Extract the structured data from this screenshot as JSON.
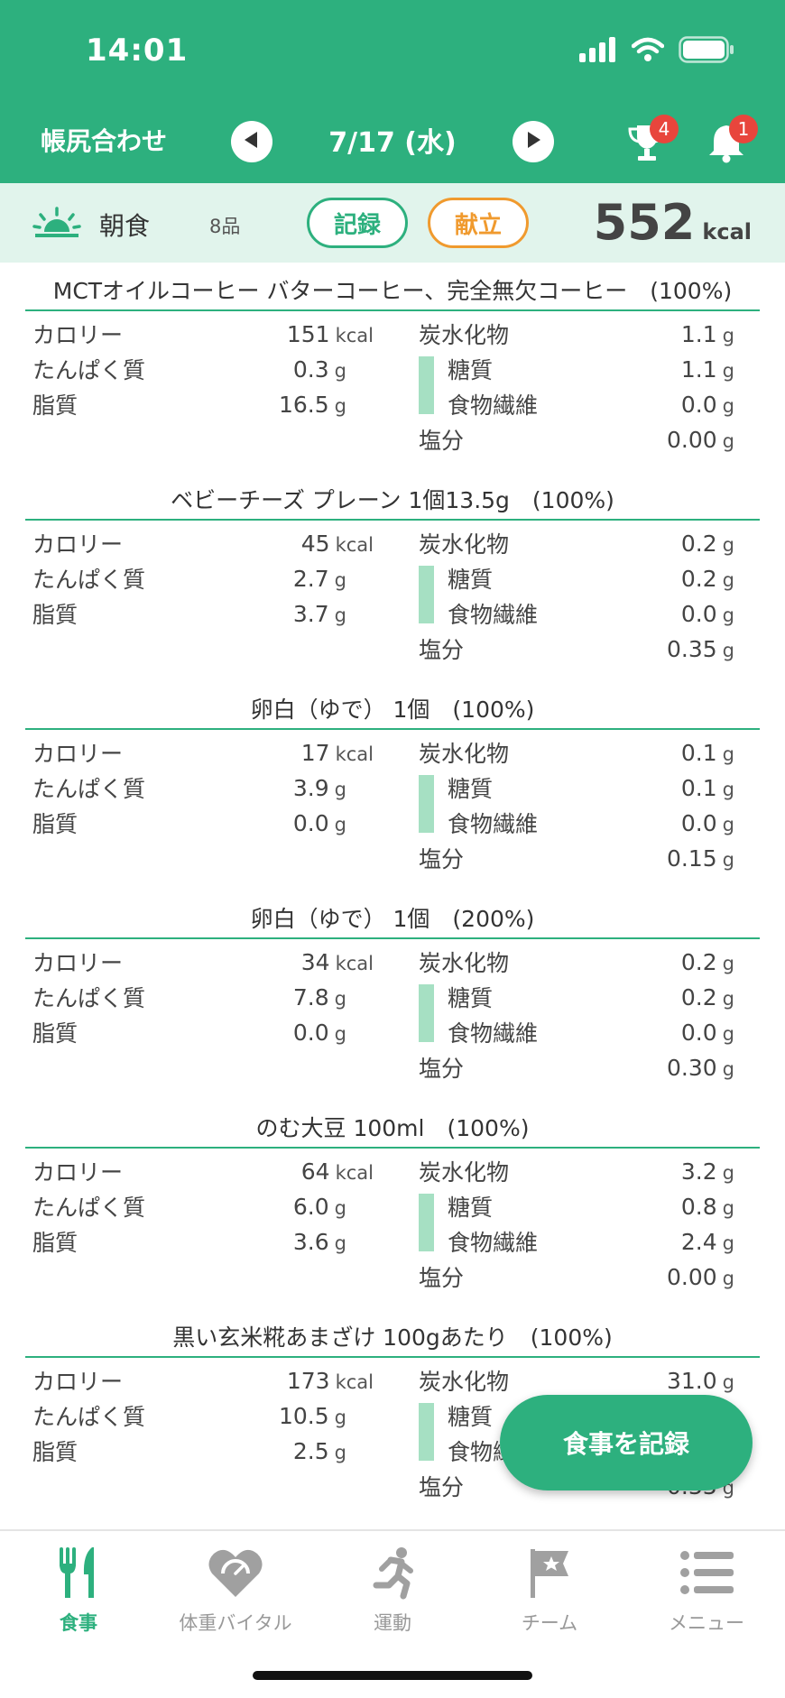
{
  "status": {
    "time": "14:01"
  },
  "header": {
    "title": "帳尻合わせ",
    "date": "7/17 (水)",
    "trophy_badge": "4",
    "bell_badge": "1"
  },
  "meal": {
    "name": "朝食",
    "count": "8品",
    "record_label": "記録",
    "menu_label": "献立",
    "kcal": "552",
    "kcal_unit": "kcal"
  },
  "labels": {
    "calorie": "カロリー",
    "protein": "たんぱく質",
    "fat": "脂質",
    "carbs": "炭水化物",
    "sugar": "糖質",
    "fiber": "食物繊維",
    "salt": "塩分",
    "kcal": "kcal",
    "g": "g"
  },
  "foods": [
    {
      "title": "MCTオイルコーヒー バターコーヒー、完全無欠コーヒー　(100%)",
      "calorie": "151",
      "protein": "0.3",
      "fat": "16.5",
      "carbs": "1.1",
      "sugar": "1.1",
      "fiber": "0.0",
      "salt": "0.00"
    },
    {
      "title": "ベビーチーズ プレーン 1個13.5g　(100%)",
      "calorie": "45",
      "protein": "2.7",
      "fat": "3.7",
      "carbs": "0.2",
      "sugar": "0.2",
      "fiber": "0.0",
      "salt": "0.35"
    },
    {
      "title": "卵白（ゆで） 1個　(100%)",
      "calorie": "17",
      "protein": "3.9",
      "fat": "0.0",
      "carbs": "0.1",
      "sugar": "0.1",
      "fiber": "0.0",
      "salt": "0.15"
    },
    {
      "title": "卵白（ゆで） 1個　(200%)",
      "calorie": "34",
      "protein": "7.8",
      "fat": "0.0",
      "carbs": "0.2",
      "sugar": "0.2",
      "fiber": "0.0",
      "salt": "0.30"
    },
    {
      "title": "のむ大豆 100ml　(100%)",
      "calorie": "64",
      "protein": "6.0",
      "fat": "3.6",
      "carbs": "3.2",
      "sugar": "0.8",
      "fiber": "2.4",
      "salt": "0.00"
    },
    {
      "title": "黒い玄米糀あまざけ 100gあたり　(100%)",
      "calorie": "173",
      "protein": "10.5",
      "fat": "2.5",
      "carbs": "31.0",
      "sugar": "",
      "fiber": "",
      "salt": "0.33"
    }
  ],
  "fab_label": "食事を記録",
  "tabs": [
    {
      "label": "食事",
      "icon": "fork-knife-icon",
      "active": true
    },
    {
      "label": "体重バイタル",
      "icon": "heart-scale-icon",
      "active": false
    },
    {
      "label": "運動",
      "icon": "runner-icon",
      "active": false
    },
    {
      "label": "チーム",
      "icon": "flag-star-icon",
      "active": false
    },
    {
      "label": "メニュー",
      "icon": "list-icon",
      "active": false
    }
  ],
  "colors": {
    "brand": "#2db07e",
    "accent_orange": "#f09a2e",
    "badge": "#e8453c",
    "meal_bar_bg": "#e1f4ec",
    "sub_bar": "#a6e0c3"
  }
}
